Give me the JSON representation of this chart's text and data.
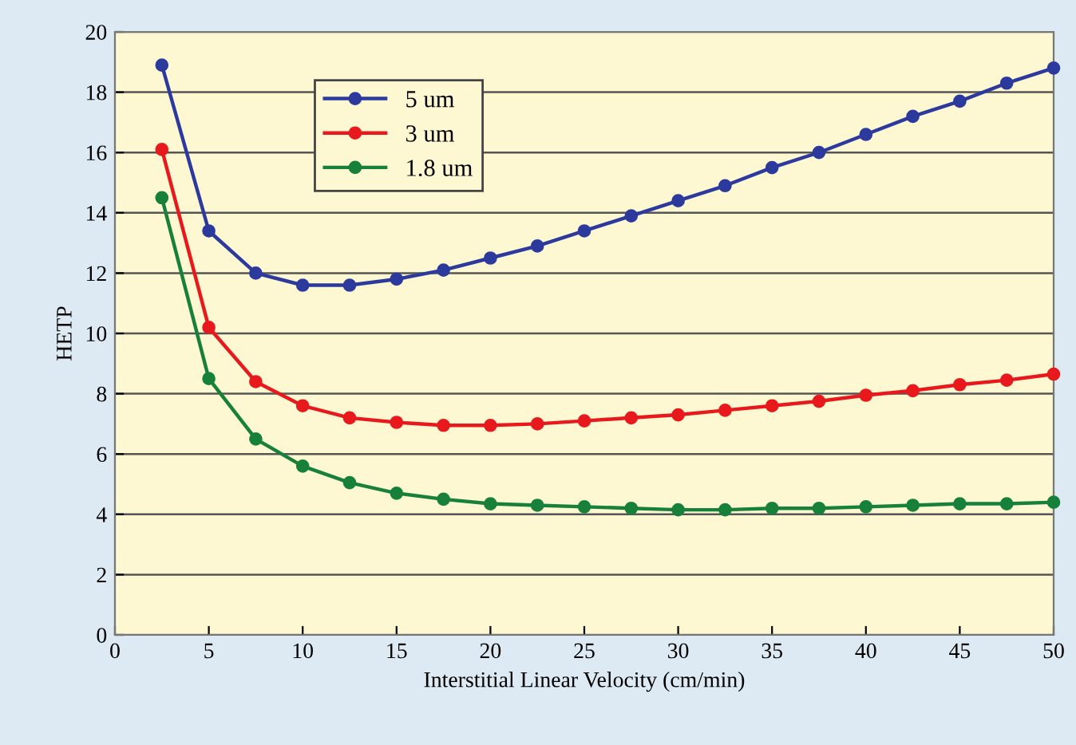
{
  "chart_data": {
    "type": "line",
    "xlabel": "Interstitial Linear Velocity (cm/min)",
    "ylabel": "HETP",
    "x": [
      2.5,
      5,
      7.5,
      10,
      12.5,
      15,
      17.5,
      20,
      22.5,
      25,
      27.5,
      30,
      32.5,
      35,
      37.5,
      40,
      42.5,
      45,
      47.5,
      50
    ],
    "series": [
      {
        "name": "5 um",
        "color": "#2b3a9c",
        "values": [
          18.9,
          13.4,
          12.0,
          11.6,
          11.6,
          11.8,
          12.1,
          12.5,
          12.9,
          13.4,
          13.9,
          14.4,
          14.9,
          15.5,
          16.0,
          16.6,
          17.2,
          17.7,
          18.3,
          18.8
        ]
      },
      {
        "name": "3 um",
        "color": "#e8191c",
        "values": [
          16.1,
          10.2,
          8.4,
          7.6,
          7.2,
          7.05,
          6.95,
          6.95,
          7.0,
          7.1,
          7.2,
          7.3,
          7.45,
          7.6,
          7.75,
          7.95,
          8.1,
          8.3,
          8.45,
          8.65
        ]
      },
      {
        "name": "1.8 um",
        "color": "#17803a",
        "values": [
          14.5,
          8.5,
          6.5,
          5.6,
          5.05,
          4.7,
          4.5,
          4.35,
          4.3,
          4.25,
          4.2,
          4.15,
          4.15,
          4.2,
          4.2,
          4.25,
          4.3,
          4.35,
          4.35,
          4.4
        ]
      }
    ],
    "xlim": [
      0,
      50
    ],
    "xticks": [
      0,
      5,
      10,
      15,
      20,
      25,
      30,
      35,
      40,
      45,
      50
    ],
    "ylim": [
      0,
      20
    ],
    "yticks": [
      0,
      2,
      4,
      6,
      8,
      10,
      12,
      14,
      16,
      18,
      20
    ],
    "grid": "y",
    "legend": "top left",
    "marker": "circle",
    "line_style": "solid"
  }
}
